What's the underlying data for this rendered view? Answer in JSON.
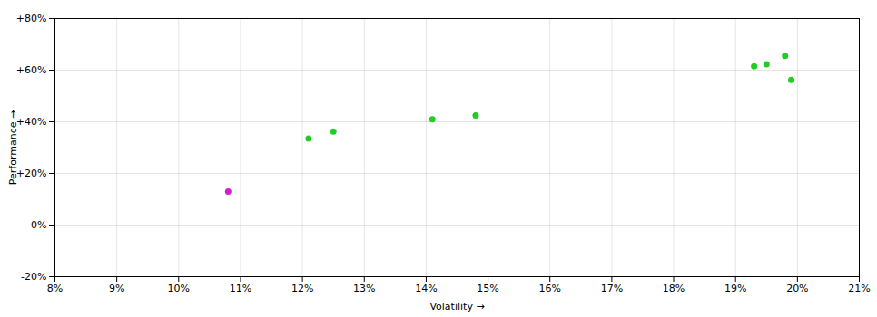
{
  "chart_data": {
    "type": "scatter",
    "xlabel": "Volatility",
    "ylabel": "Performance",
    "xlim": [
      0.08,
      0.21
    ],
    "ylim": [
      -0.2,
      0.8
    ],
    "xticks": [
      {
        "value": 0.08,
        "label": "8%"
      },
      {
        "value": 0.09,
        "label": "9%"
      },
      {
        "value": 0.1,
        "label": "10%"
      },
      {
        "value": 0.11,
        "label": "11%"
      },
      {
        "value": 0.12,
        "label": "12%"
      },
      {
        "value": 0.13,
        "label": "13%"
      },
      {
        "value": 0.14,
        "label": "14%"
      },
      {
        "value": 0.15,
        "label": "15%"
      },
      {
        "value": 0.16,
        "label": "16%"
      },
      {
        "value": 0.17,
        "label": "17%"
      },
      {
        "value": 0.18,
        "label": "18%"
      },
      {
        "value": 0.19,
        "label": "19%"
      },
      {
        "value": 0.2,
        "label": "20%"
      },
      {
        "value": 0.21,
        "label": "21%"
      }
    ],
    "yticks": [
      {
        "value": -0.2,
        "label": "-20%"
      },
      {
        "value": 0.0,
        "label": "0%"
      },
      {
        "value": 0.2,
        "label": "+20%"
      },
      {
        "value": 0.4,
        "label": "+40%"
      },
      {
        "value": 0.6,
        "label": "+60%"
      },
      {
        "value": 0.8,
        "label": "+80%"
      }
    ],
    "grid": true,
    "series": [
      {
        "color": "#22cc22",
        "marker": "circle",
        "x": [
          0.121,
          0.125,
          0.141,
          0.148,
          0.193,
          0.195,
          0.198,
          0.199
        ],
        "y": [
          0.335,
          0.362,
          0.41,
          0.425,
          0.615,
          0.623,
          0.655,
          0.562
        ]
      },
      {
        "color": "#cc22cc",
        "marker": "circle",
        "x": [
          0.108
        ],
        "y": [
          0.13
        ]
      }
    ]
  }
}
